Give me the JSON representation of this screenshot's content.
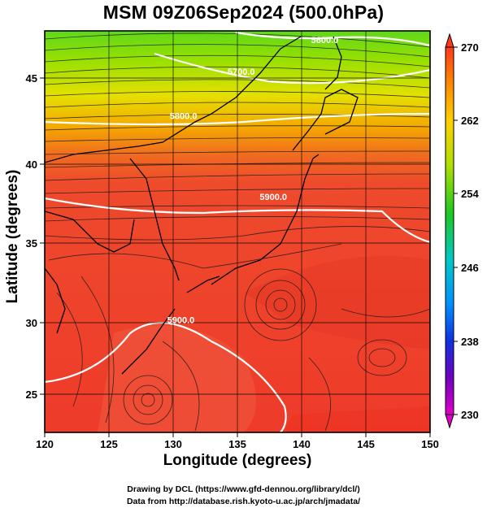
{
  "title": "MSM 09Z06Sep2024 (500.0hPa)",
  "xaxis": {
    "label": "Longitude (degrees)",
    "ticks": [
      "120",
      "125",
      "130",
      "135",
      "140",
      "145",
      "150"
    ]
  },
  "yaxis": {
    "label": "Latitude  (degrees)",
    "ticks": [
      "25",
      "30",
      "35",
      "40",
      "45"
    ]
  },
  "colorbar": {
    "ticks": [
      "270",
      "262",
      "254",
      "246",
      "238",
      "230"
    ]
  },
  "contours": [
    {
      "label": "5600.0",
      "lon": 141.8,
      "lat": 47.2
    },
    {
      "label": "5700.0",
      "lon": 135.3,
      "lat": 45.2
    },
    {
      "label": "5800.0",
      "lon": 130.8,
      "lat": 42.4
    },
    {
      "label": "5900.0",
      "lon": 137.8,
      "lat": 37.3
    },
    {
      "label": "5900.0",
      "lon": 130.6,
      "lat": 29.5
    }
  ],
  "credits": [
    "Drawing by DCL (https://www.gfd-dennou.org/library/dcl/)",
    "Data from http://database.rish.kyoto-u.ac.jp/arch/jmadata/"
  ],
  "colors": {
    "warm": "#ef3a2a",
    "cool": "#20c020",
    "contour": "#ffffff",
    "coast": "#000000"
  }
}
